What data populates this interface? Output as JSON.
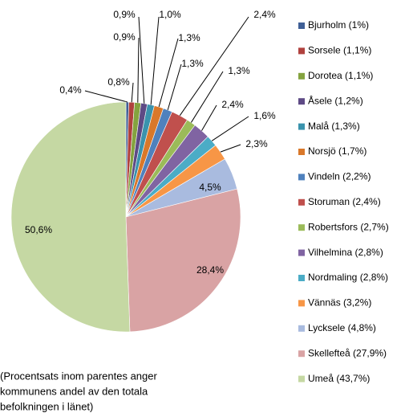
{
  "chart_data": {
    "type": "pie",
    "categories": [
      "Bjurholm (1%)",
      "Sorsele (1,1%)",
      "Dorotea (1,1%)",
      "Åsele (1,2%)",
      "Malå (1,3%)",
      "Norsjö (1,7%)",
      "Vindeln (2,2%)",
      "Storuman (2,4%)",
      "Robertsfors (2,7%)",
      "Vilhelmina (2,8%)",
      "Nordmaling (2,8%)",
      "Vännäs (3,2%)",
      "Lycksele (4,8%)",
      "Skellefteå (27,9%)",
      "Umeå (43,7%)"
    ],
    "values": [
      0.4,
      0.8,
      0.9,
      0.9,
      1.0,
      1.3,
      1.3,
      2.4,
      1.3,
      2.4,
      1.6,
      2.3,
      4.5,
      28.4,
      50.6
    ],
    "value_labels": [
      "0,4%",
      "0,8%",
      "0,9%",
      "0,9%",
      "1,0%",
      "1,3%",
      "1,3%",
      "2,4%",
      "1,3%",
      "2,4%",
      "1,6%",
      "2,3%",
      "4,5%",
      "28,4%",
      "50,6%"
    ],
    "colors": [
      "#3f5f96",
      "#b0413e",
      "#84a33f",
      "#5e4a85",
      "#3a93ad",
      "#d9782a",
      "#4f81bd",
      "#c0504d",
      "#9bbb59",
      "#8064a2",
      "#4bacc6",
      "#f79646",
      "#a9bbdf",
      "#d9a3a4",
      "#c5d8a3"
    ],
    "legend": "right",
    "note": [
      "(Procentsats inom parentes anger",
      "kommunens andel av den totala",
      "befolkningen i länet)"
    ]
  }
}
